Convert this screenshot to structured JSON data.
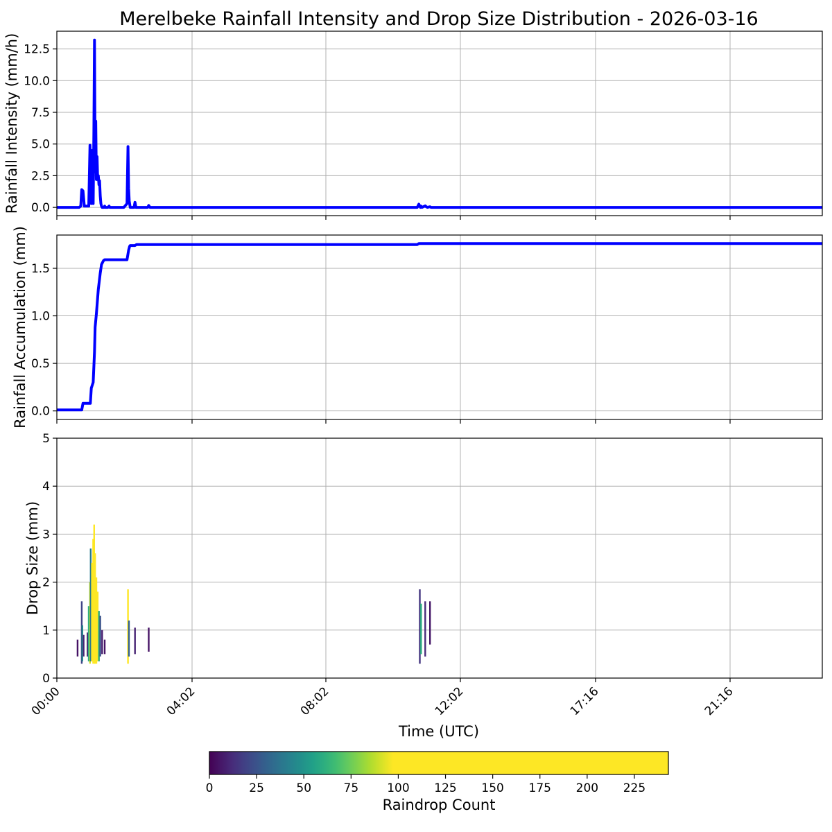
{
  "title": "Merelbeke Rainfall Intensity and Drop Size Distribution - 2026-03-16",
  "xlabel": "Time (UTC)",
  "x_tick_labels": [
    "00:00",
    "04:02",
    "08:02",
    "12:02",
    "17:16",
    "21:16"
  ],
  "colors": {
    "series": "#0000ff",
    "grid": "#b0b0b0",
    "viridis": [
      "#440154",
      "#482878",
      "#3e4989",
      "#31688e",
      "#26828e",
      "#1f9e89",
      "#35b779",
      "#6ece58",
      "#b5de2b",
      "#fde725"
    ]
  },
  "chart_data": [
    {
      "type": "line",
      "ylabel": "Rainfall Intensity (mm/h)",
      "ylim": [
        -0.65,
        13.9
      ],
      "yticks": [
        0.0,
        2.5,
        5.0,
        7.5,
        10.0,
        12.5
      ],
      "ytick_labels": [
        "0.0",
        "2.5",
        "5.0",
        "7.5",
        "10.0",
        "12.5"
      ],
      "grid": true,
      "x_unit": "hours UTC",
      "xlim": [
        0,
        24
      ],
      "series": [
        {
          "x": [
            0,
            0.7,
            0.75,
            0.78,
            0.82,
            0.86,
            0.9,
            0.95,
            1.0,
            1.04,
            1.08,
            1.1,
            1.12,
            1.14,
            1.16,
            1.18,
            1.2,
            1.22,
            1.24,
            1.26,
            1.28,
            1.3,
            1.32,
            1.34,
            1.36,
            1.38,
            1.4,
            1.42,
            1.44,
            1.46,
            1.48,
            1.5,
            1.52,
            1.55,
            1.6,
            1.64,
            1.66,
            1.7,
            1.72,
            1.8,
            2.1,
            2.2,
            2.23,
            2.25,
            2.27,
            2.3,
            2.35,
            2.42,
            2.45,
            2.48,
            2.52,
            2.7,
            2.85,
            2.88,
            2.92,
            11.3,
            11.35,
            11.4,
            11.42,
            11.45,
            11.55,
            11.58,
            11.62,
            11.7,
            11.73,
            11.78,
            12.0,
            24
          ],
          "y": [
            0,
            0,
            0.1,
            1.4,
            1.3,
            0.1,
            0.1,
            0.1,
            0.1,
            4.9,
            0.3,
            2.4,
            4.5,
            0.3,
            6.0,
            13.2,
            2.8,
            6.8,
            2.2,
            4.0,
            2.2,
            2.5,
            1.8,
            2.1,
            0.9,
            0.3,
            0.1,
            0,
            0,
            0,
            0,
            0.1,
            0,
            0,
            0,
            0.1,
            0,
            0,
            0,
            0,
            0,
            0.3,
            4.8,
            1.5,
            0.5,
            0,
            0,
            0,
            0.4,
            0,
            0,
            0,
            0,
            0.15,
            0,
            0,
            0.25,
            0,
            0.1,
            0,
            0.12,
            0.05,
            0,
            0.05,
            0,
            0,
            0,
            0
          ]
        }
      ]
    },
    {
      "type": "line",
      "ylabel": "Rainfall Accumulation (mm)",
      "ylim": [
        -0.09,
        1.85
      ],
      "yticks": [
        0.0,
        0.5,
        1.0,
        1.5
      ],
      "ytick_labels": [
        "0.0",
        "0.5",
        "1.0",
        "1.5"
      ],
      "grid": true,
      "x_unit": "hours UTC",
      "xlim": [
        0,
        24
      ],
      "series": [
        {
          "x": [
            0,
            0.78,
            0.82,
            1.05,
            1.08,
            1.14,
            1.18,
            1.2,
            1.24,
            1.3,
            1.36,
            1.4,
            1.46,
            1.5,
            1.55,
            2.2,
            2.25,
            2.28,
            2.3,
            2.45,
            2.5,
            11.3,
            11.35,
            24
          ],
          "y": [
            0.01,
            0.01,
            0.08,
            0.08,
            0.24,
            0.3,
            0.62,
            0.88,
            1.02,
            1.28,
            1.45,
            1.54,
            1.58,
            1.59,
            1.59,
            1.59,
            1.69,
            1.73,
            1.74,
            1.74,
            1.75,
            1.75,
            1.76,
            1.76
          ]
        }
      ]
    },
    {
      "type": "heatmap",
      "ylabel": "Drop Size (mm)",
      "ylim": [
        0,
        5
      ],
      "yticks": [
        0,
        1,
        2,
        3,
        4,
        5
      ],
      "ytick_labels": [
        "0",
        "1",
        "2",
        "3",
        "4",
        "5"
      ],
      "grid": true,
      "x_unit": "hours UTC",
      "xlim": [
        0,
        24
      ],
      "colorbar": {
        "label": "Raindrop Count",
        "range": [
          0,
          243
        ],
        "saturation": 97,
        "ticks": [
          0,
          25,
          50,
          75,
          100,
          125,
          150,
          175,
          200,
          225
        ],
        "tick_labels": [
          "0",
          "25",
          "50",
          "75",
          "100",
          "125",
          "150",
          "175",
          "200",
          "225"
        ]
      },
      "bins": [
        {
          "t": 0.65,
          "y0": 0.45,
          "y1": 0.8,
          "v": 5
        },
        {
          "t": 0.78,
          "y0": 0.3,
          "y1": 1.6,
          "v": 20
        },
        {
          "t": 0.8,
          "y0": 0.35,
          "y1": 1.1,
          "v": 45
        },
        {
          "t": 0.84,
          "y0": 0.45,
          "y1": 0.9,
          "v": 10
        },
        {
          "t": 0.96,
          "y0": 0.45,
          "y1": 0.95,
          "v": 10
        },
        {
          "t": 1.0,
          "y0": 0.35,
          "y1": 1.5,
          "v": 60
        },
        {
          "t": 1.04,
          "y0": 0.3,
          "y1": 2.0,
          "v": 90
        },
        {
          "t": 1.06,
          "y0": 0.35,
          "y1": 2.7,
          "v": 40
        },
        {
          "t": 1.1,
          "y0": 0.35,
          "y1": 2.4,
          "v": 110
        },
        {
          "t": 1.14,
          "y0": 0.3,
          "y1": 2.9,
          "v": 200
        },
        {
          "t": 1.17,
          "y0": 0.3,
          "y1": 3.2,
          "v": 240
        },
        {
          "t": 1.2,
          "y0": 0.3,
          "y1": 2.6,
          "v": 150
        },
        {
          "t": 1.24,
          "y0": 0.3,
          "y1": 2.1,
          "v": 120
        },
        {
          "t": 1.28,
          "y0": 0.35,
          "y1": 1.8,
          "v": 100
        },
        {
          "t": 1.32,
          "y0": 0.35,
          "y1": 1.4,
          "v": 60
        },
        {
          "t": 1.36,
          "y0": 0.45,
          "y1": 1.3,
          "v": 25
        },
        {
          "t": 1.42,
          "y0": 0.5,
          "y1": 1.0,
          "v": 8
        },
        {
          "t": 1.5,
          "y0": 0.5,
          "y1": 0.8,
          "v": 5
        },
        {
          "t": 2.23,
          "y0": 0.3,
          "y1": 1.85,
          "v": 110
        },
        {
          "t": 2.26,
          "y0": 0.45,
          "y1": 1.2,
          "v": 30
        },
        {
          "t": 2.45,
          "y0": 0.5,
          "y1": 1.05,
          "v": 10
        },
        {
          "t": 2.88,
          "y0": 0.55,
          "y1": 1.05,
          "v": 5
        },
        {
          "t": 11.38,
          "y0": 0.3,
          "y1": 1.85,
          "v": 15
        },
        {
          "t": 11.42,
          "y0": 0.5,
          "y1": 1.55,
          "v": 60
        },
        {
          "t": 11.55,
          "y0": 0.45,
          "y1": 1.6,
          "v": 12
        },
        {
          "t": 11.7,
          "y0": 0.7,
          "y1": 1.6,
          "v": 6
        }
      ]
    }
  ]
}
